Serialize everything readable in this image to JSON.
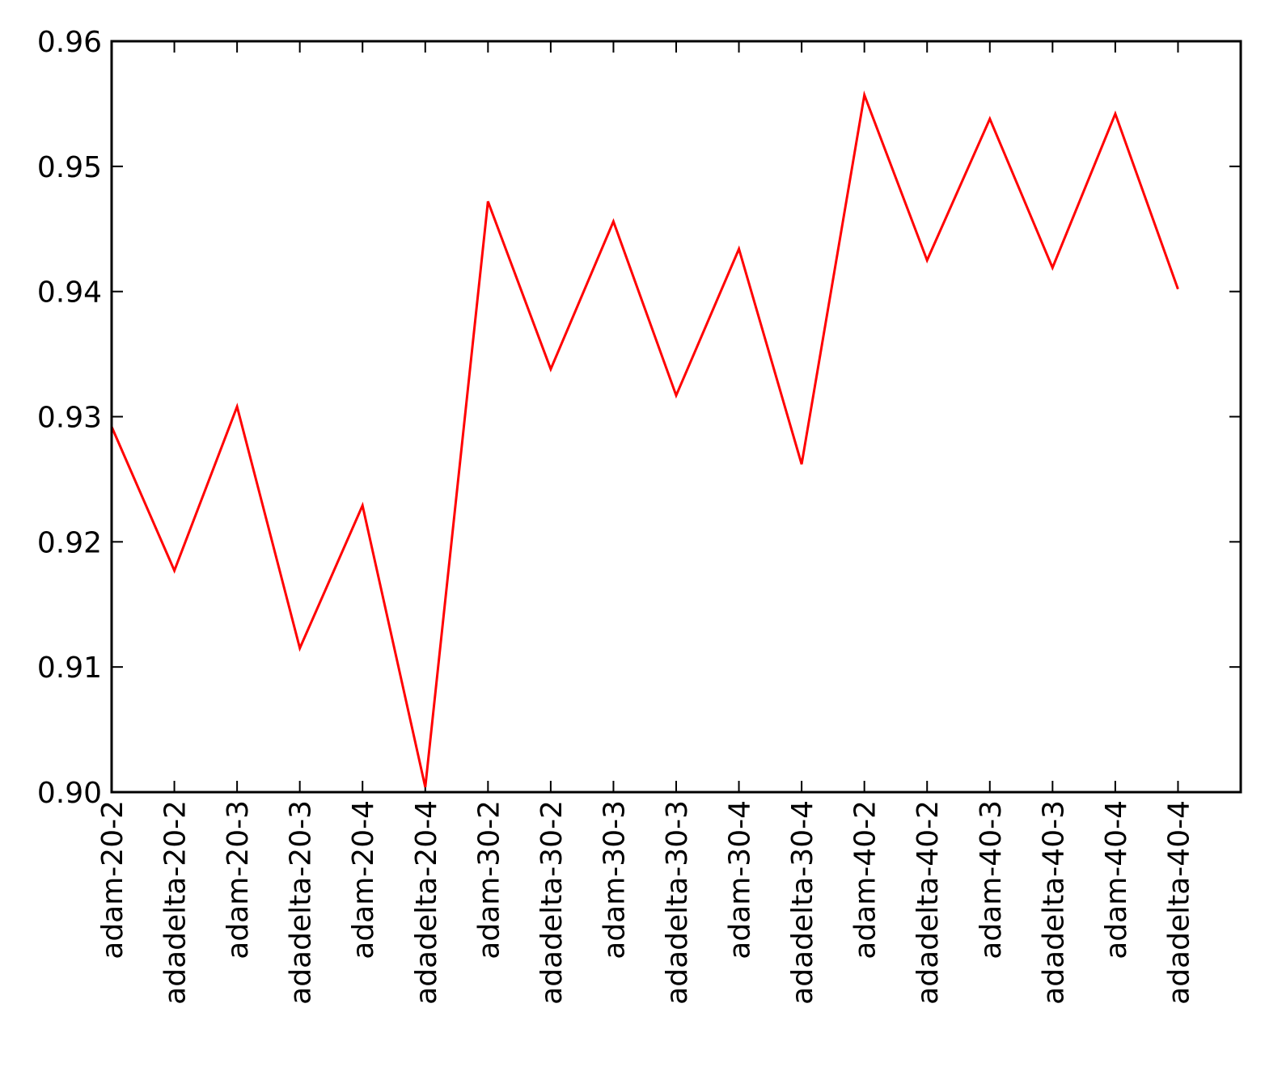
{
  "chart_data": {
    "type": "line",
    "title": "",
    "xlabel": "",
    "ylabel": "",
    "categories": [
      "adam-20-2",
      "adadelta-20-2",
      "adam-20-3",
      "adadelta-20-3",
      "adam-20-4",
      "adadelta-20-4",
      "adam-30-2",
      "adadelta-30-2",
      "adam-30-3",
      "adadelta-30-3",
      "adam-30-4",
      "adadelta-30-4",
      "adam-40-2",
      "adadelta-40-2",
      "adam-40-3",
      "adadelta-40-3",
      "adam-40-4",
      "adadelta-40-4"
    ],
    "series": [
      {
        "values": [
          0.9292,
          0.9177,
          0.9308,
          0.9115,
          0.9229,
          0.9004,
          0.9472,
          0.9338,
          0.9456,
          0.9317,
          0.9434,
          0.9262,
          0.9557,
          0.9425,
          0.9538,
          0.9419,
          0.9542,
          0.9402
        ],
        "color": "#ff0000"
      }
    ],
    "ylim": [
      0.9,
      0.96
    ],
    "xlim": [
      0,
      18
    ],
    "yticks": [
      "0.90",
      "0.91",
      "0.92",
      "0.93",
      "0.94",
      "0.95",
      "0.96"
    ],
    "grid": false,
    "legend": "none"
  }
}
